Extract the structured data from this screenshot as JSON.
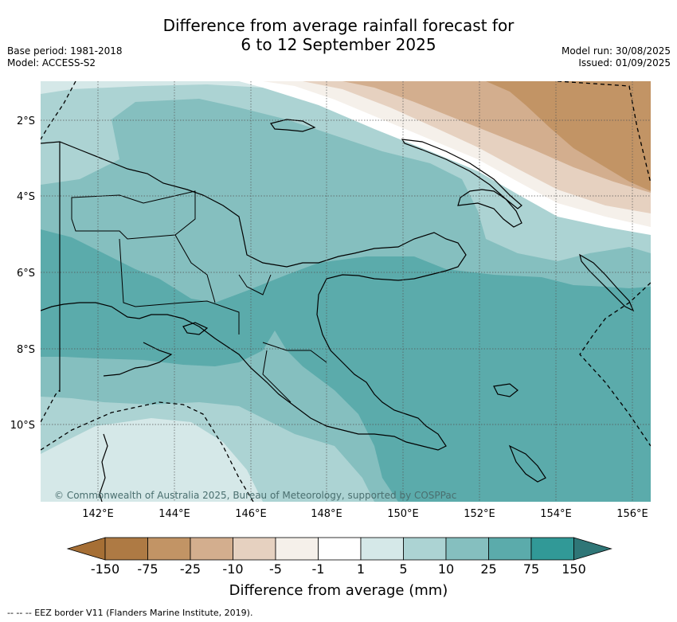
{
  "title_line1": "Difference from average rainfall forecast for",
  "title_line2": "6 to 12 September 2025",
  "base_period": "Base period: 1981-2018",
  "model": "Model: ACCESS-S2",
  "model_run": "Model run: 30/08/2025",
  "issued": "Issued: 01/09/2025",
  "copyright": "© Commonwealth of Australia 2025, Bureau of Meteorology, supported by COSPPac",
  "lat_labels": [
    "2°S",
    "4°S",
    "6°S",
    "8°S",
    "10°S"
  ],
  "lon_labels": [
    "142°E",
    "144°E",
    "146°E",
    "148°E",
    "150°E",
    "152°E",
    "154°E",
    "156°E"
  ],
  "colorbar": {
    "title": "Difference from average (mm)",
    "ticks": [
      "-150",
      "-75",
      "-25",
      "-10",
      "-5",
      "-1",
      "1",
      "5",
      "10",
      "25",
      "75",
      "150"
    ],
    "colors": [
      "#a66f35",
      "#ae7a44",
      "#c29465",
      "#d3ae8e",
      "#e6d1c0",
      "#f5f0ea",
      "#ffffff",
      "#d5e8e8",
      "#acd3d3",
      "#85bfbf",
      "#5babab",
      "#319997",
      "#2f7677"
    ]
  },
  "footer_note": "-- -- -- EEZ border V11 (Flanders Marine Institute, 2019)."
}
